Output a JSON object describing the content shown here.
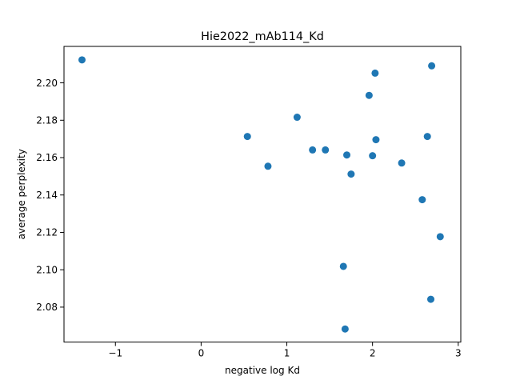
{
  "chart_data": {
    "type": "scatter",
    "title": "Hie2022_mAb114_Kd",
    "xlabel": "negative log Kd",
    "ylabel": "average perplexity",
    "xlim": [
      -1.6,
      3.03
    ],
    "ylim": [
      2.0613,
      2.2195
    ],
    "xticks": [
      -1,
      0,
      1,
      2,
      3
    ],
    "xtick_labels": [
      "−1",
      "0",
      "1",
      "2",
      "3"
    ],
    "yticks": [
      2.08,
      2.1,
      2.12,
      2.14,
      2.16,
      2.18,
      2.2
    ],
    "ytick_labels": [
      "2.08",
      "2.10",
      "2.12",
      "2.14",
      "2.16",
      "2.18",
      "2.20"
    ],
    "grid": false,
    "marker_color": "#1f77b4",
    "points": [
      {
        "x": -1.39,
        "y": 2.2123
      },
      {
        "x": 0.54,
        "y": 2.1713
      },
      {
        "x": 0.78,
        "y": 2.1554
      },
      {
        "x": 1.12,
        "y": 2.1816
      },
      {
        "x": 1.3,
        "y": 2.1641
      },
      {
        "x": 1.45,
        "y": 2.1641
      },
      {
        "x": 1.66,
        "y": 2.1018
      },
      {
        "x": 1.68,
        "y": 2.0683
      },
      {
        "x": 1.7,
        "y": 2.1614
      },
      {
        "x": 1.75,
        "y": 2.1512
      },
      {
        "x": 1.96,
        "y": 2.1933
      },
      {
        "x": 2.0,
        "y": 2.161
      },
      {
        "x": 2.03,
        "y": 2.2052
      },
      {
        "x": 2.04,
        "y": 2.1696
      },
      {
        "x": 2.34,
        "y": 2.1571
      },
      {
        "x": 2.58,
        "y": 2.1375
      },
      {
        "x": 2.64,
        "y": 2.1713
      },
      {
        "x": 2.68,
        "y": 2.0842
      },
      {
        "x": 2.69,
        "y": 2.2091
      },
      {
        "x": 2.79,
        "y": 2.1177
      }
    ]
  }
}
